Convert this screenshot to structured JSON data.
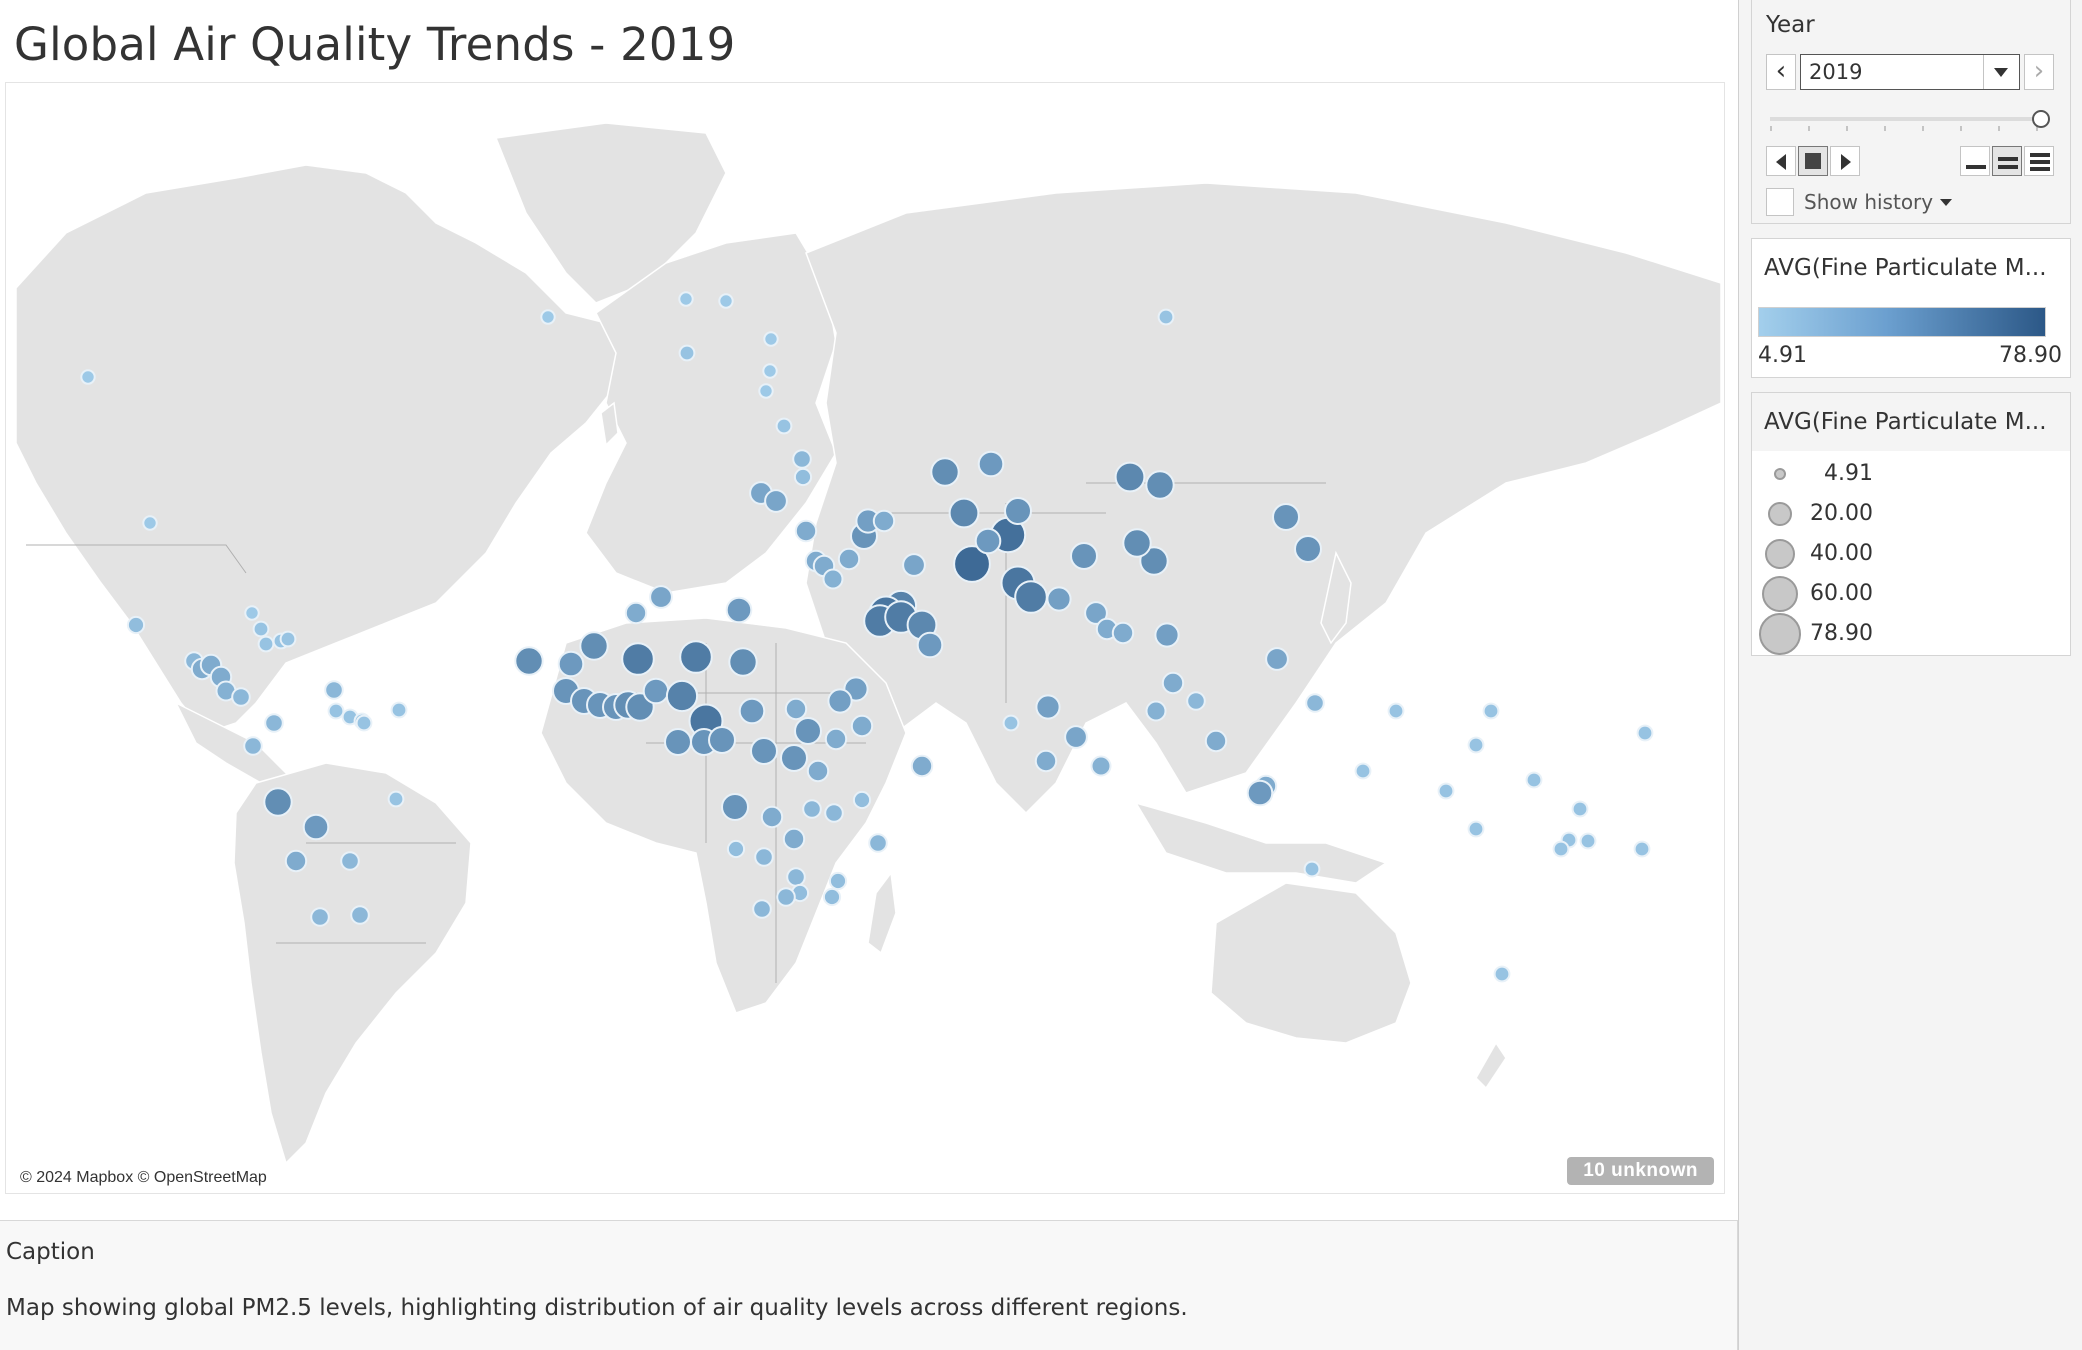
{
  "title": "Global Air Quality Trends - 2019",
  "map": {
    "attribution": "© 2024 Mapbox © OpenStreetMap",
    "unknown_badge": "10 unknown",
    "colors": {
      "land": "#e3e3e3",
      "border": "#9c9c9c",
      "water": "#ffffff",
      "light_mark": "#9dcbeb",
      "dark_mark": "#2f5d8e",
      "mark_outline": "#e8f1f8"
    },
    "measure": "AVG(Fine Particulate Matter PM2.5)",
    "value_range": [
      4.91,
      78.9
    ]
  },
  "caption": {
    "title": "Caption",
    "text": "Map showing global PM2.5 levels, highlighting distribution of air quality levels across different regions."
  },
  "year_filter": {
    "label": "Year",
    "selected": "2019",
    "show_history_label": "Show history"
  },
  "color_legend": {
    "title": "AVG(Fine Particulate M...",
    "min_label": "4.91",
    "max_label": "78.90",
    "ramp_start": "#a3cfec",
    "ramp_end": "#2c5887"
  },
  "size_legend": {
    "title": "AVG(Fine Particulate M...",
    "entries": [
      {
        "label": "4.91",
        "value": 4.91
      },
      {
        "label": "20.00",
        "value": 20.0
      },
      {
        "label": "40.00",
        "value": 40.0
      },
      {
        "label": "60.00",
        "value": 60.0
      },
      {
        "label": "78.90",
        "value": 78.9
      }
    ]
  }
}
